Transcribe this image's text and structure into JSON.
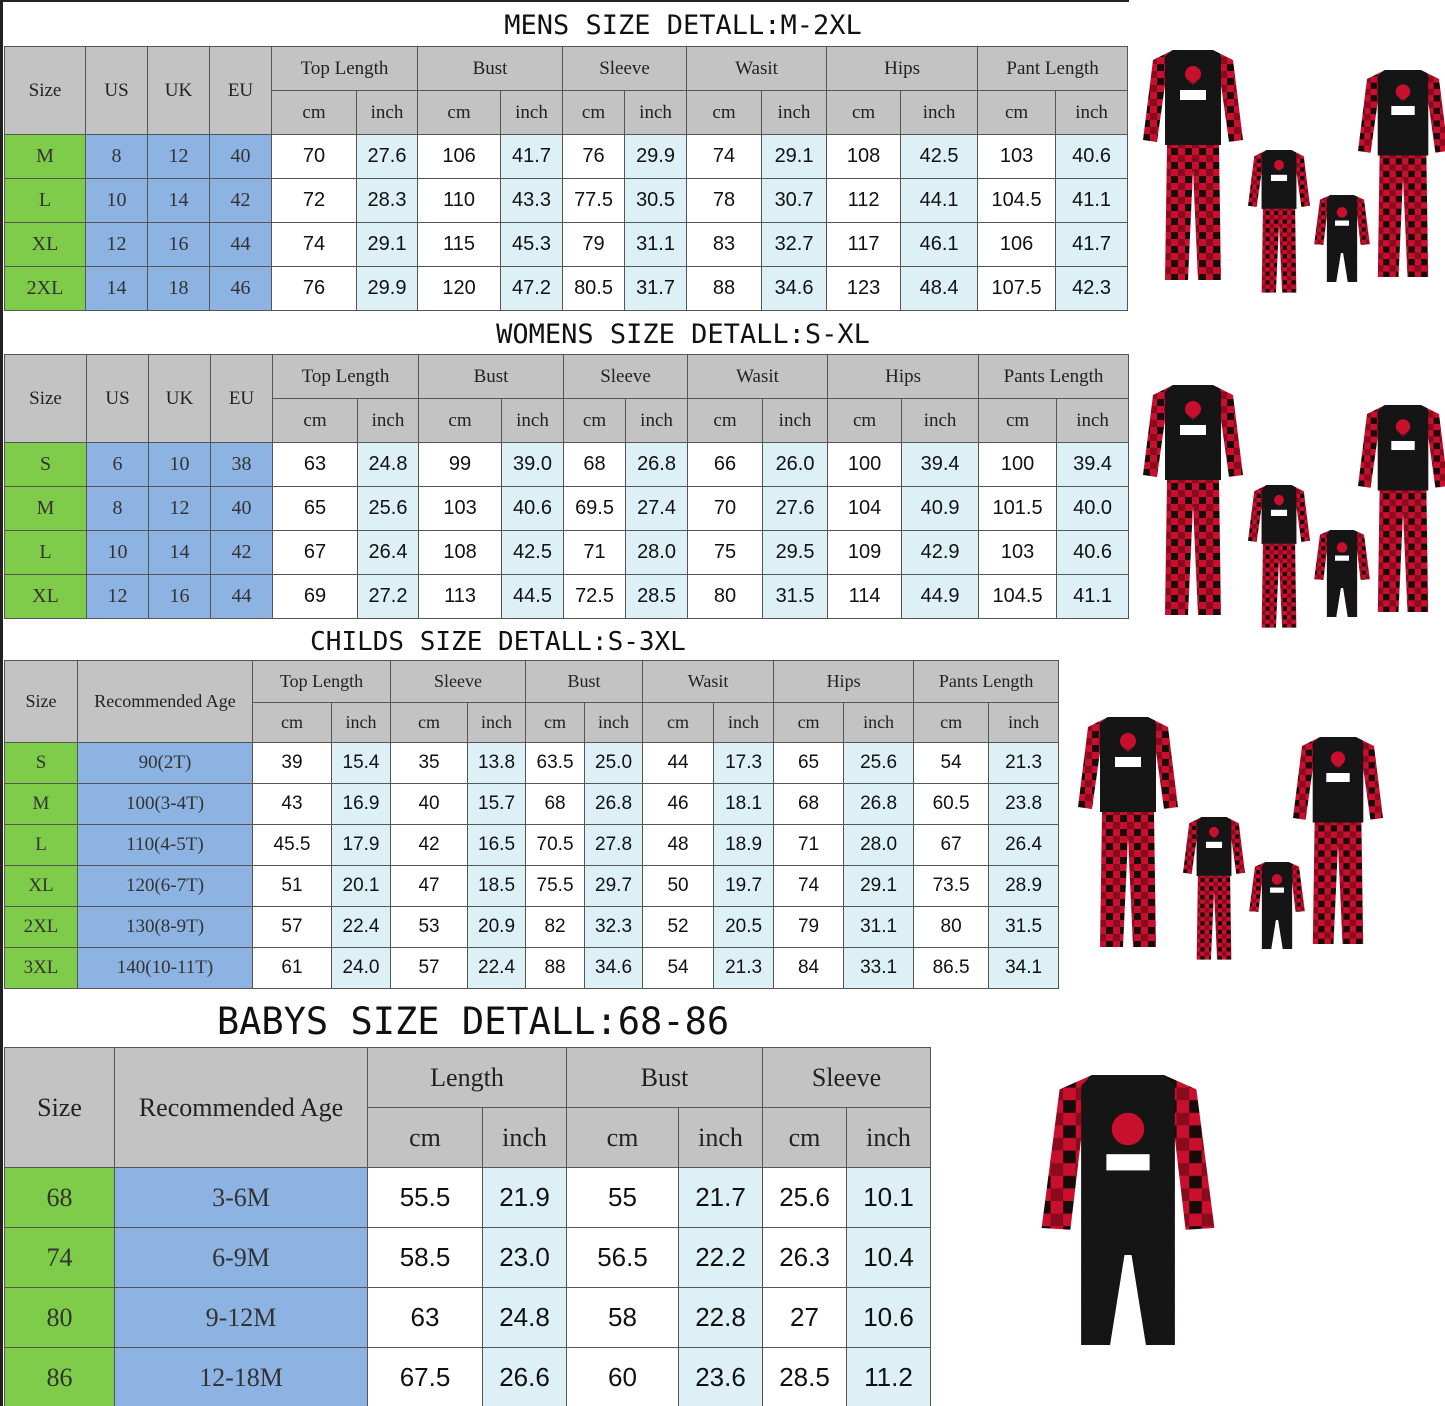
{
  "tables": [
    {
      "title": "MENS SIZE DETALL:M-2XL",
      "lead_headers": [
        "Size",
        "US",
        "UK",
        "EU"
      ],
      "groups": [
        "Top Length",
        "Bust",
        "Sleeve",
        "Wasit",
        "Hips",
        "Pant Length"
      ],
      "unit_cm": "cm",
      "unit_inch": "inch",
      "rows": [
        [
          "M",
          "8",
          "12",
          "40",
          "70",
          "27.6",
          "106",
          "41.7",
          "76",
          "29.9",
          "74",
          "29.1",
          "108",
          "42.5",
          "103",
          "40.6"
        ],
        [
          "L",
          "10",
          "14",
          "42",
          "72",
          "28.3",
          "110",
          "43.3",
          "77.5",
          "30.5",
          "78",
          "30.7",
          "112",
          "44.1",
          "104.5",
          "41.1"
        ],
        [
          "XL",
          "12",
          "16",
          "44",
          "74",
          "29.1",
          "115",
          "45.3",
          "79",
          "31.1",
          "83",
          "32.7",
          "117",
          "46.1",
          "106",
          "41.7"
        ],
        [
          "2XL",
          "14",
          "18",
          "46",
          "76",
          "29.9",
          "120",
          "47.2",
          "80.5",
          "31.7",
          "88",
          "34.6",
          "123",
          "48.4",
          "107.5",
          "42.3"
        ]
      ]
    },
    {
      "title": "WOMENS SIZE DETALL:S-XL",
      "lead_headers": [
        "Size",
        "US",
        "UK",
        "EU"
      ],
      "groups": [
        "Top Length",
        "Bust",
        "Sleeve",
        "Wasit",
        "Hips",
        "Pants Length"
      ],
      "unit_cm": "cm",
      "unit_inch": "inch",
      "rows": [
        [
          "S",
          "6",
          "10",
          "38",
          "63",
          "24.8",
          "99",
          "39.0",
          "68",
          "26.8",
          "66",
          "26.0",
          "100",
          "39.4",
          "100",
          "39.4"
        ],
        [
          "M",
          "8",
          "12",
          "40",
          "65",
          "25.6",
          "103",
          "40.6",
          "69.5",
          "27.4",
          "70",
          "27.6",
          "104",
          "40.9",
          "101.5",
          "40.0"
        ],
        [
          "L",
          "10",
          "14",
          "42",
          "67",
          "26.4",
          "108",
          "42.5",
          "71",
          "28.0",
          "75",
          "29.5",
          "109",
          "42.9",
          "103",
          "40.6"
        ],
        [
          "XL",
          "12",
          "16",
          "44",
          "69",
          "27.2",
          "113",
          "44.5",
          "72.5",
          "28.5",
          "80",
          "31.5",
          "114",
          "44.9",
          "104.5",
          "41.1"
        ]
      ]
    },
    {
      "title": "CHILDS SIZE DETALL:S-3XL",
      "lead_headers": [
        "Size",
        "Recommended Age"
      ],
      "groups": [
        "Top Length",
        "Sleeve",
        "Bust",
        "Wasit",
        "Hips",
        "Pants Length"
      ],
      "unit_cm": "cm",
      "unit_inch": "inch",
      "rows": [
        [
          "S",
          "90(2T)",
          "39",
          "15.4",
          "35",
          "13.8",
          "63.5",
          "25.0",
          "44",
          "17.3",
          "65",
          "25.6",
          "54",
          "21.3"
        ],
        [
          "M",
          "100(3-4T)",
          "43",
          "16.9",
          "40",
          "15.7",
          "68",
          "26.8",
          "46",
          "18.1",
          "68",
          "26.8",
          "60.5",
          "23.8"
        ],
        [
          "L",
          "110(4-5T)",
          "45.5",
          "17.9",
          "42",
          "16.5",
          "70.5",
          "27.8",
          "48",
          "18.9",
          "71",
          "28.0",
          "67",
          "26.4"
        ],
        [
          "XL",
          "120(6-7T)",
          "51",
          "20.1",
          "47",
          "18.5",
          "75.5",
          "29.7",
          "50",
          "19.7",
          "74",
          "29.1",
          "73.5",
          "28.9"
        ],
        [
          "2XL",
          "130(8-9T)",
          "57",
          "22.4",
          "53",
          "20.9",
          "82",
          "32.3",
          "52",
          "20.5",
          "79",
          "31.1",
          "80",
          "31.5"
        ],
        [
          "3XL",
          "140(10-11T)",
          "61",
          "24.0",
          "57",
          "22.4",
          "88",
          "34.6",
          "54",
          "21.3",
          "84",
          "33.1",
          "86.5",
          "34.1"
        ]
      ]
    },
    {
      "title": "BABYS SIZE DETALL:68-86",
      "lead_headers": [
        "Size",
        "Recommended Age"
      ],
      "groups": [
        "Length",
        "Bust",
        "Sleeve"
      ],
      "unit_cm": "cm",
      "unit_inch": "inch",
      "rows": [
        [
          "68",
          "3-6M",
          "55.5",
          "21.9",
          "55",
          "21.7",
          "25.6",
          "10.1"
        ],
        [
          "74",
          "6-9M",
          "58.5",
          "23.0",
          "56.5",
          "22.2",
          "26.3",
          "10.4"
        ],
        [
          "80",
          "9-12M",
          "63",
          "24.8",
          "58",
          "22.8",
          "27",
          "10.6"
        ],
        [
          "86",
          "12-18M",
          "67.5",
          "26.6",
          "60",
          "23.6",
          "28.5",
          "11.2"
        ]
      ]
    }
  ],
  "colors": {
    "header_gray": "#c3c3c3",
    "size_green": "#7fcc4a",
    "lead_blue": "#8db3e2",
    "inch_lightblue": "#dcf0f6",
    "plaid_red": "#c8102e",
    "shirt_black": "#151515"
  },
  "images": [
    "family-pajamas-photo",
    "family-pajamas-photo",
    "family-pajamas-photo",
    "baby-romper-photo"
  ]
}
